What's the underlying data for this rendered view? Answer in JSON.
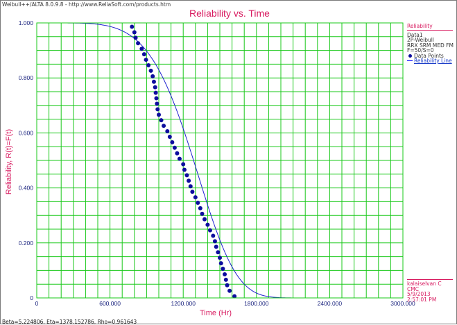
{
  "window": {
    "header": "Weibull++/ALTA 8.0.9.8 - http://www.ReliaSoft.com/products.htm",
    "footer": "Beta=5.224806, Eta=1378.152786, Rho=0.961643"
  },
  "legend": {
    "title": "Reliability",
    "lines": [
      "Data1",
      "2P-Weibull",
      "RRX SRM MED FM",
      "F=50/S=0"
    ],
    "points_label": "Data Points",
    "line_label": "Reliability Line"
  },
  "info": {
    "lines": [
      "kalaiselvan C",
      "CMC",
      "5/9/2013",
      "2:57:01 PM"
    ]
  },
  "colors": {
    "grid": "#19c819",
    "points": "#0d0d9e",
    "line": "#2020d0",
    "text_accent": "#d81b60",
    "axis_text": "#1a237e"
  },
  "chart_data": {
    "type": "scatter",
    "title": "Reliability vs. Time",
    "xlabel": "Time (Hr)",
    "ylabel": "Reliability, R(t)=F(t)",
    "xlim": [
      0,
      3000
    ],
    "ylim": [
      0,
      1
    ],
    "x_ticks": [
      "0",
      "600.000",
      "1200.000",
      "1800.000",
      "2400.000",
      "3000.000"
    ],
    "y_ticks": [
      "0",
      "0.200",
      "0.400",
      "0.600",
      "0.800",
      "1.000"
    ],
    "grid": true,
    "legend_position": "right",
    "series": [
      {
        "name": "Data Points",
        "kind": "points",
        "points": [
          [
            780,
            0.986
          ],
          [
            800,
            0.966
          ],
          [
            810,
            0.946
          ],
          [
            830,
            0.926
          ],
          [
            860,
            0.906
          ],
          [
            880,
            0.886
          ],
          [
            895,
            0.866
          ],
          [
            915,
            0.846
          ],
          [
            935,
            0.826
          ],
          [
            950,
            0.806
          ],
          [
            960,
            0.786
          ],
          [
            970,
            0.766
          ],
          [
            975,
            0.746
          ],
          [
            980,
            0.726
          ],
          [
            985,
            0.706
          ],
          [
            990,
            0.686
          ],
          [
            1000,
            0.666
          ],
          [
            1020,
            0.646
          ],
          [
            1040,
            0.626
          ],
          [
            1070,
            0.606
          ],
          [
            1090,
            0.586
          ],
          [
            1110,
            0.566
          ],
          [
            1130,
            0.546
          ],
          [
            1150,
            0.526
          ],
          [
            1170,
            0.506
          ],
          [
            1200,
            0.486
          ],
          [
            1210,
            0.466
          ],
          [
            1230,
            0.446
          ],
          [
            1245,
            0.426
          ],
          [
            1260,
            0.406
          ],
          [
            1275,
            0.386
          ],
          [
            1300,
            0.366
          ],
          [
            1320,
            0.346
          ],
          [
            1340,
            0.326
          ],
          [
            1355,
            0.306
          ],
          [
            1375,
            0.286
          ],
          [
            1400,
            0.266
          ],
          [
            1420,
            0.246
          ],
          [
            1445,
            0.226
          ],
          [
            1460,
            0.206
          ],
          [
            1470,
            0.186
          ],
          [
            1485,
            0.166
          ],
          [
            1500,
            0.146
          ],
          [
            1510,
            0.126
          ],
          [
            1525,
            0.106
          ],
          [
            1540,
            0.086
          ],
          [
            1550,
            0.066
          ],
          [
            1560,
            0.046
          ],
          [
            1580,
            0.026
          ],
          [
            1620,
            0.006
          ]
        ]
      },
      {
        "name": "Reliability Line",
        "kind": "weibull",
        "beta": 5.224806,
        "eta": 1378.152786
      }
    ]
  }
}
